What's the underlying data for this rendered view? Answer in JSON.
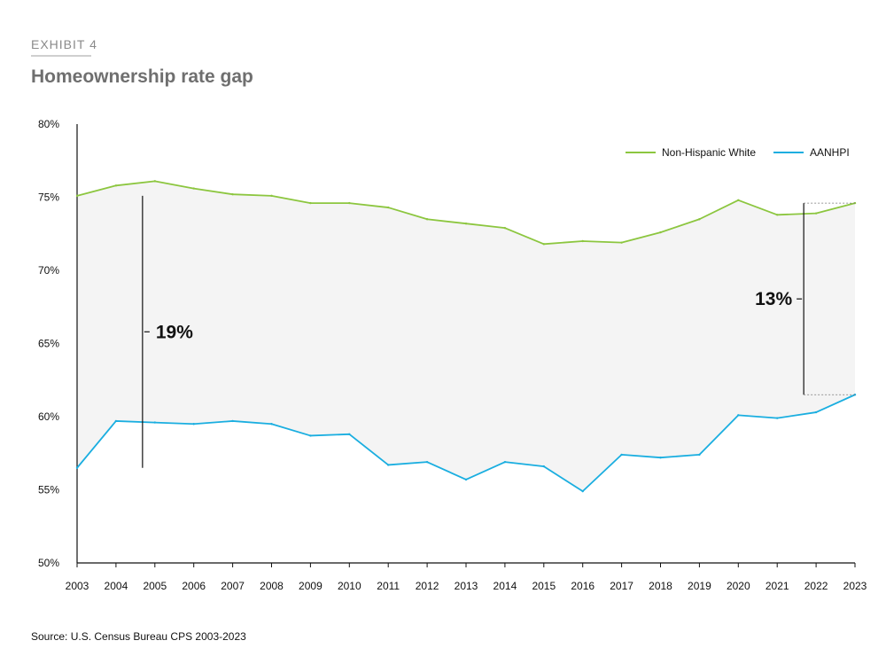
{
  "header": {
    "exhibit": "EXHIBIT 4"
  },
  "footer": {
    "source": "Source: U.S. Census Bureau CPS 2003-2023"
  },
  "colors": {
    "white": "#8cc63f",
    "aanhpi": "#1aaee0",
    "fill": "#f4f4f4",
    "axis": "#111111"
  },
  "chart_data": {
    "type": "line",
    "title": "Homeownership rate gap",
    "xlabel": "",
    "ylabel": "",
    "ylim": [
      50,
      80
    ],
    "yticks": [
      50,
      55,
      60,
      65,
      70,
      75,
      80
    ],
    "ytick_labels": [
      "50%",
      "55%",
      "60%",
      "65%",
      "70%",
      "75%",
      "80%"
    ],
    "x": [
      "2003",
      "2004",
      "2005",
      "2006",
      "2007",
      "2008",
      "2009",
      "2010",
      "2011",
      "2012",
      "2013",
      "2014",
      "2015",
      "2016",
      "2017",
      "2018",
      "2019",
      "2020",
      "2021",
      "2022",
      "2023"
    ],
    "series": [
      {
        "name": "Non-Hispanic White",
        "color": "#8cc63f",
        "values": [
          75.1,
          75.8,
          76.1,
          75.6,
          75.2,
          75.1,
          74.6,
          74.6,
          74.3,
          73.5,
          73.2,
          72.9,
          71.8,
          72.0,
          71.9,
          72.6,
          73.5,
          74.8,
          73.8,
          73.9,
          74.6
        ]
      },
      {
        "name": "AANHPI",
        "color": "#1aaee0",
        "values": [
          56.5,
          59.7,
          59.6,
          59.5,
          59.7,
          59.5,
          58.7,
          58.8,
          56.7,
          56.9,
          55.7,
          56.9,
          56.6,
          54.9,
          57.4,
          57.2,
          57.4,
          60.1,
          59.9,
          60.3,
          61.5
        ]
      }
    ],
    "legend": "top-right",
    "annotations": [
      {
        "label": "19%",
        "from": 56.5,
        "to": 75.1,
        "near_year": "2004"
      },
      {
        "label": "13%",
        "from": 61.5,
        "to": 74.6,
        "near_year": "2021"
      }
    ]
  }
}
